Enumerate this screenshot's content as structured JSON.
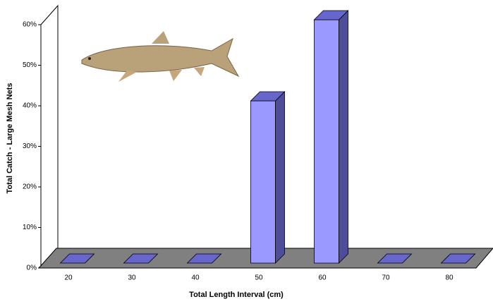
{
  "chart_data": {
    "type": "bar3d",
    "x_label": "Total Length Interval (cm)",
    "y_label": "Total Catch - Large Mesh Nets",
    "categories": [
      "20",
      "30",
      "40",
      "50",
      "60",
      "70",
      "80"
    ],
    "values": [
      0,
      0,
      0,
      40,
      60,
      0,
      0
    ],
    "color": "#9999ff",
    "ylim": [
      0,
      60
    ],
    "yticks": [
      {
        "value": 0,
        "label": "0%"
      },
      {
        "value": 10,
        "label": "10%"
      },
      {
        "value": 20,
        "label": "20%"
      },
      {
        "value": 30,
        "label": "30%"
      },
      {
        "value": 40,
        "label": "40%"
      },
      {
        "value": 50,
        "label": "50%"
      },
      {
        "value": 60,
        "label": "60%"
      }
    ]
  }
}
